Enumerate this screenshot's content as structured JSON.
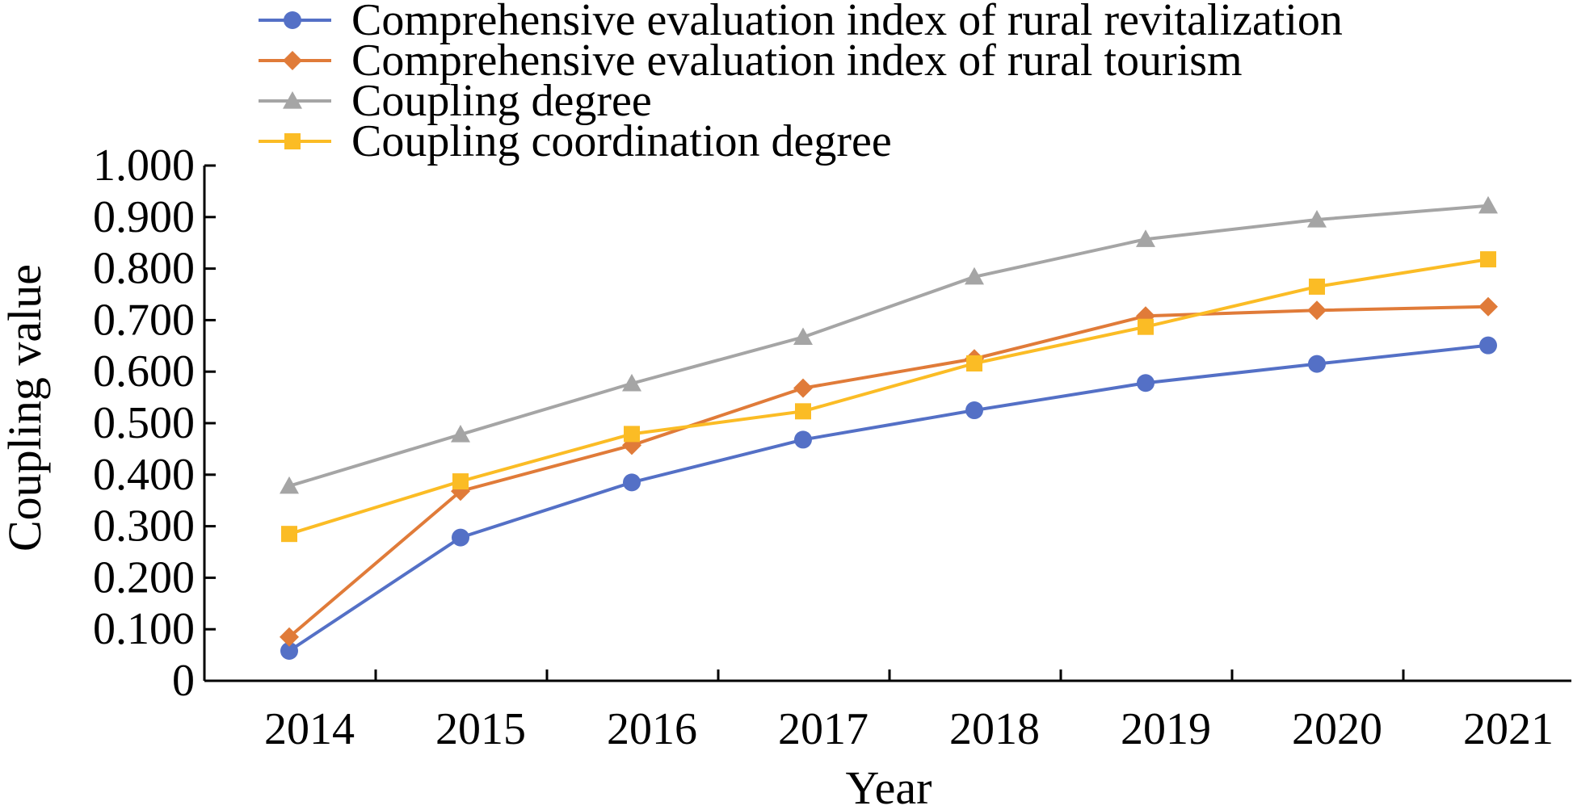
{
  "chart_data": {
    "type": "line",
    "title": "",
    "xlabel": "Year",
    "ylabel": "Coupling value",
    "categories": [
      "2014",
      "2015",
      "2016",
      "2017",
      "2018",
      "2019",
      "2020",
      "2021"
    ],
    "ylim": [
      0,
      1.0
    ],
    "yticks": [
      {
        "value": 0,
        "label": "0"
      },
      {
        "value": 0.1,
        "label": "0.100"
      },
      {
        "value": 0.2,
        "label": "0.200"
      },
      {
        "value": 0.3,
        "label": "0.300"
      },
      {
        "value": 0.4,
        "label": "0.400"
      },
      {
        "value": 0.5,
        "label": "0.500"
      },
      {
        "value": 0.6,
        "label": "0.600"
      },
      {
        "value": 0.7,
        "label": "0.700"
      },
      {
        "value": 0.8,
        "label": "0.800"
      },
      {
        "value": 0.9,
        "label": "0.900"
      },
      {
        "value": 1.0,
        "label": "1.000"
      }
    ],
    "grid": false,
    "legend_position": "top",
    "series": [
      {
        "name": "Comprehensive evaluation index of rural revitalization",
        "color": "#5470C6",
        "marker": "circle",
        "values": [
          0.058,
          0.278,
          0.385,
          0.468,
          0.525,
          0.578,
          0.615,
          0.651
        ]
      },
      {
        "name": "Comprehensive evaluation index of rural tourism",
        "color": "#E07B39",
        "marker": "diamond",
        "values": [
          0.085,
          0.368,
          0.457,
          0.568,
          0.625,
          0.708,
          0.719,
          0.726
        ]
      },
      {
        "name": "Coupling degree",
        "color": "#A5A5A5",
        "marker": "triangle",
        "values": [
          0.378,
          0.478,
          0.577,
          0.667,
          0.784,
          0.857,
          0.895,
          0.922
        ]
      },
      {
        "name": "Coupling coordination degree",
        "color": "#FBBC25",
        "marker": "square",
        "values": [
          0.285,
          0.387,
          0.479,
          0.523,
          0.616,
          0.687,
          0.765,
          0.818
        ]
      }
    ]
  }
}
